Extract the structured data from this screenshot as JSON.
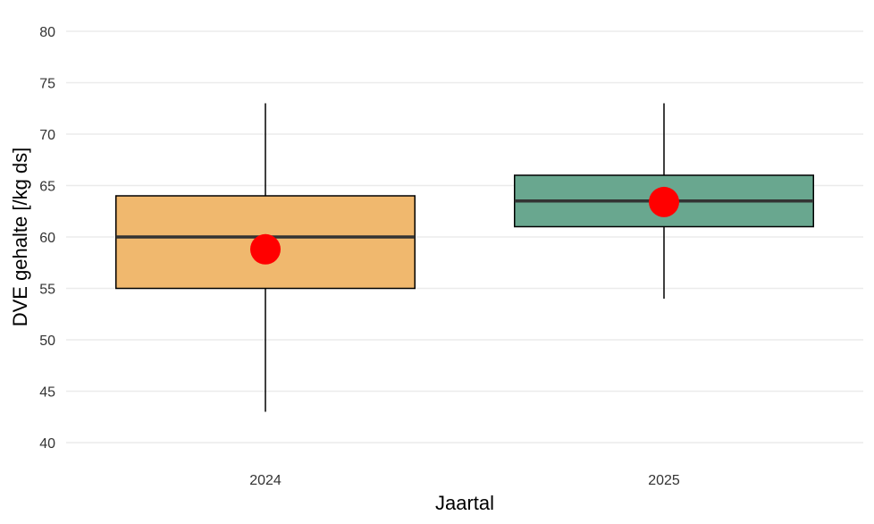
{
  "chart_data": {
    "type": "boxplot",
    "title": "",
    "xlabel": "Jaartal",
    "ylabel": "DVE gehalte [/kg ds]",
    "ylim": [
      40,
      80
    ],
    "yticks": [
      40,
      45,
      50,
      55,
      60,
      65,
      70,
      75,
      80
    ],
    "grid": true,
    "legend": "none",
    "categories": [
      "2024",
      "2025"
    ],
    "boxes": [
      {
        "category": "2024",
        "min": 43,
        "q1": 55,
        "median": 60,
        "q3": 64,
        "max": 73,
        "mean": 58.8,
        "color": "#f0b86e"
      },
      {
        "category": "2025",
        "min": 54,
        "q1": 61,
        "median": 63.5,
        "q3": 66,
        "max": 73,
        "mean": 63.4,
        "color": "#69a78f"
      }
    ],
    "mean_marker_color": "#ff0000"
  }
}
